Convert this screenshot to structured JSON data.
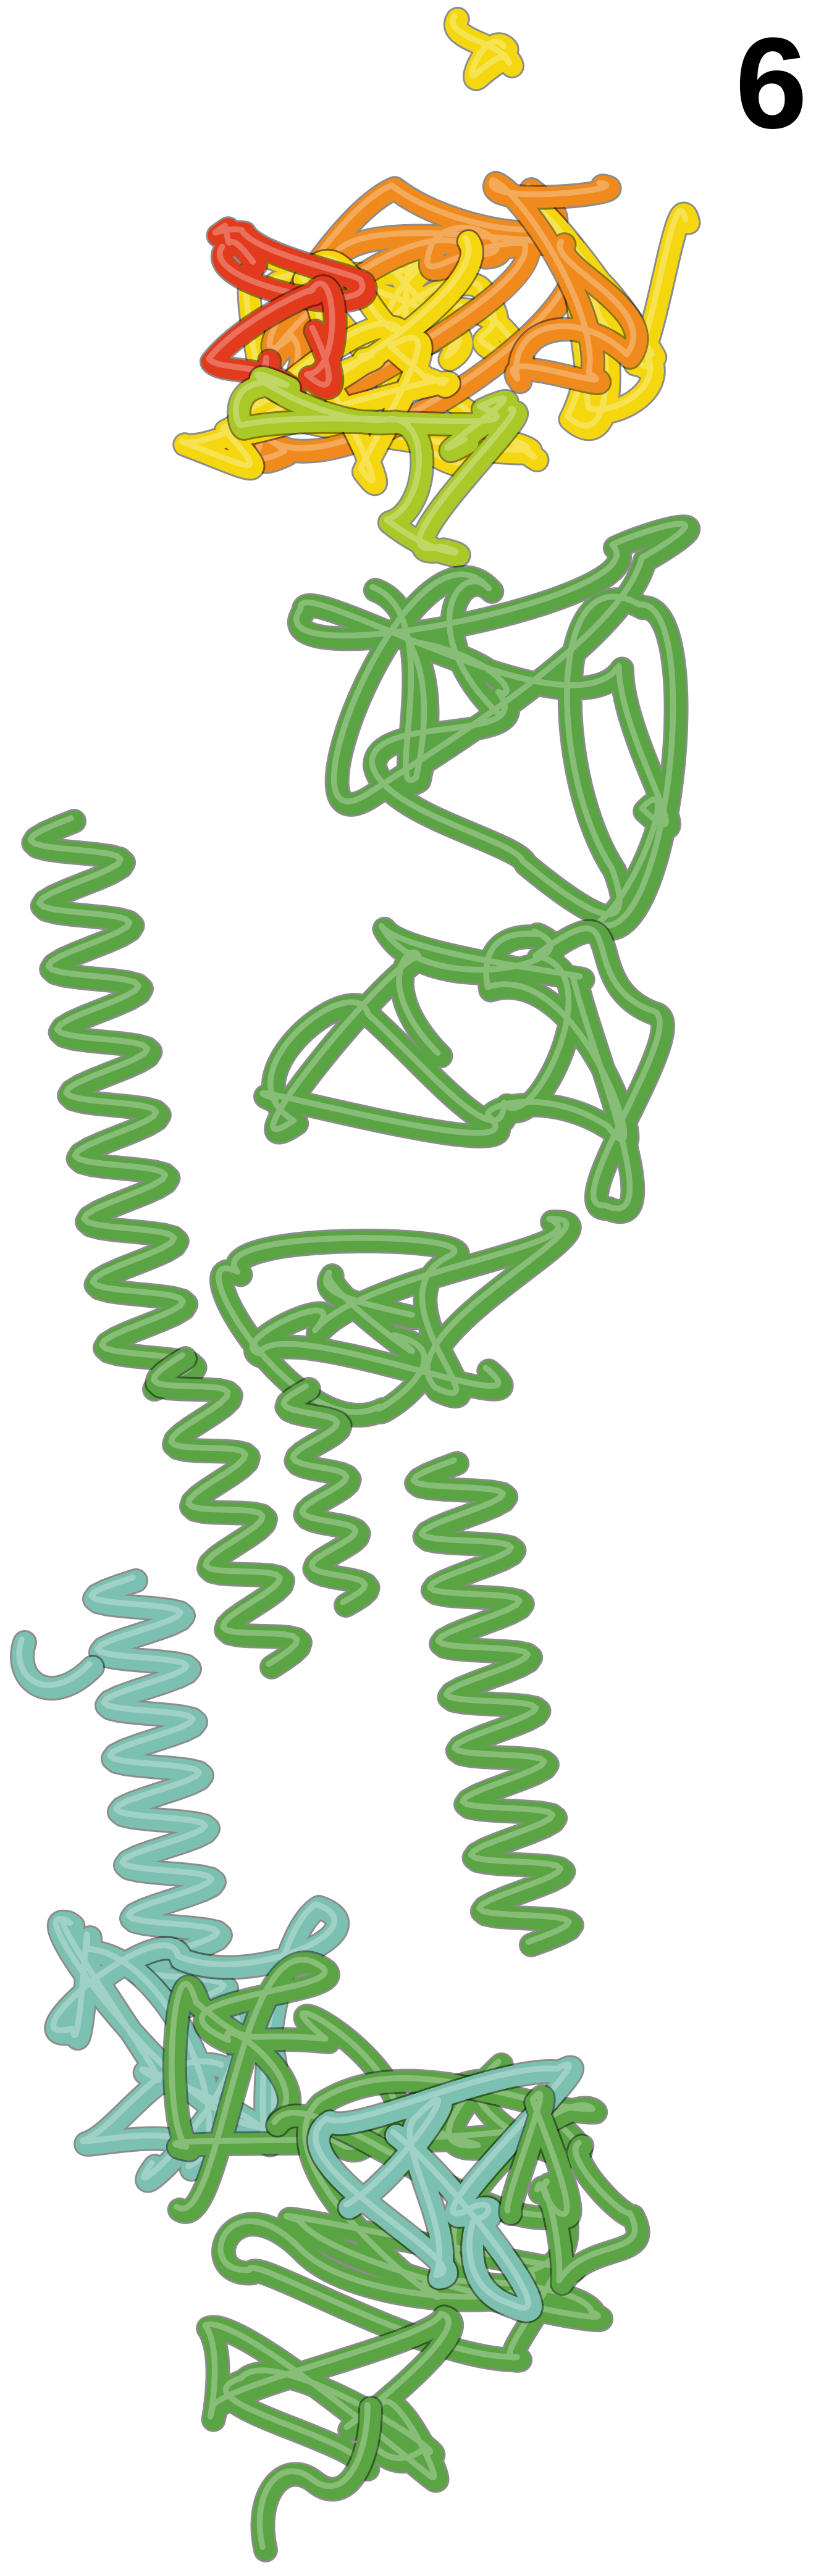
{
  "panel_label": "6",
  "colors": {
    "background": "#ffffff",
    "hot": "#e23a1d",
    "orange": "#f08a1c",
    "yellow": "#f4d70e",
    "lime": "#a8c928",
    "green": "#5aa444",
    "teal": "#7cc0b2",
    "label": "#000000"
  }
}
